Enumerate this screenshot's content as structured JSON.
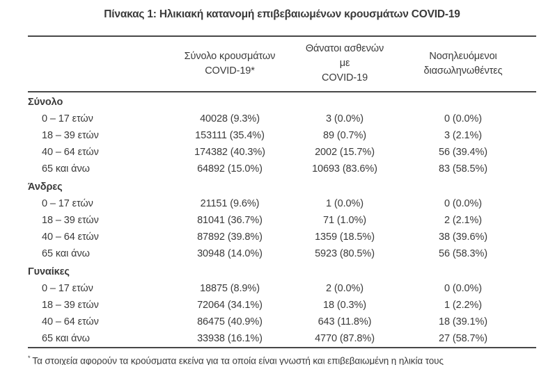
{
  "page": {
    "title": "Πίνακας 1: Ηλικιακή κατανομή επιβεβαιωμένων κρουσμάτων COVID-19"
  },
  "table": {
    "headers": [
      {
        "line1": "Σύνολο κρουσμάτων",
        "line2": "COVID-19*"
      },
      {
        "line1": "Θάνατοι ασθενών με",
        "line2": "COVID-19"
      },
      {
        "line1": "Νοσηλευόμενοι",
        "line2": "διασωληνωθέντες"
      }
    ],
    "groups": [
      {
        "label": "Σύνολο",
        "rows": [
          {
            "age": "0 – 17 ετών",
            "cases": "40028 (9.3%)",
            "deaths": "3 (0.0%)",
            "intubated": "0 (0.0%)"
          },
          {
            "age": "18 – 39 ετών",
            "cases": "153111 (35.4%)",
            "deaths": "89 (0.7%)",
            "intubated": "3 (2.1%)"
          },
          {
            "age": "40 – 64 ετών",
            "cases": "174382 (40.3%)",
            "deaths": "2002 (15.7%)",
            "intubated": "56 (39.4%)"
          },
          {
            "age": "65 και άνω",
            "cases": "64892 (15.0%)",
            "deaths": "10693 (83.6%)",
            "intubated": "83 (58.5%)"
          }
        ]
      },
      {
        "label": "Άνδρες",
        "rows": [
          {
            "age": "0 – 17 ετών",
            "cases": "21151 (9.6%)",
            "deaths": "1 (0.0%)",
            "intubated": "0 (0.0%)"
          },
          {
            "age": "18 – 39 ετών",
            "cases": "81041 (36.7%)",
            "deaths": "71 (1.0%)",
            "intubated": "2 (2.1%)"
          },
          {
            "age": "40 – 64 ετών",
            "cases": "87892 (39.8%)",
            "deaths": "1359 (18.5%)",
            "intubated": "38 (39.6%)"
          },
          {
            "age": "65 και άνω",
            "cases": "30948 (14.0%)",
            "deaths": "5923 (80.5%)",
            "intubated": "56 (58.3%)"
          }
        ]
      },
      {
        "label": "Γυναίκες",
        "rows": [
          {
            "age": "0 – 17 ετών",
            "cases": "18875 (8.9%)",
            "deaths": "2 (0.0%)",
            "intubated": "0 (0.0%)"
          },
          {
            "age": "18 – 39 ετών",
            "cases": "72064 (34.1%)",
            "deaths": "18 (0.3%)",
            "intubated": "1 (2.2%)"
          },
          {
            "age": "40 – 64 ετών",
            "cases": "86475 (40.9%)",
            "deaths": "643 (11.8%)",
            "intubated": "18 (39.1%)"
          },
          {
            "age": "65 και άνω",
            "cases": "33938 (16.1%)",
            "deaths": "4770 (87.8%)",
            "intubated": "27 (58.7%)"
          }
        ]
      }
    ]
  },
  "footnote": {
    "marker": "*",
    "text": "Τα στοιχεία αφορούν τα κρούσματα εκείνα για τα οποία είναι γνωστή και επιβεβαιωμένη η ηλικία τους"
  },
  "colors": {
    "text": "#3a3a3a",
    "rule": "#474747",
    "background": "#ffffff"
  }
}
